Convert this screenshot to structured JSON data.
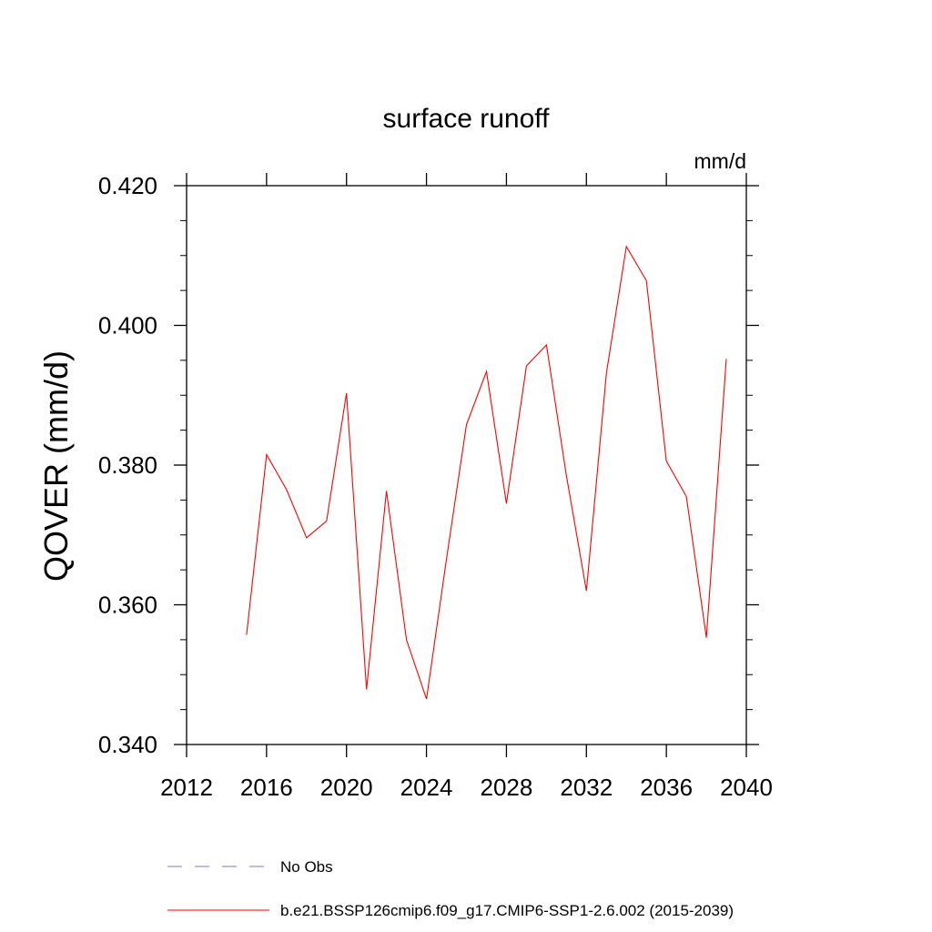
{
  "chart_data": {
    "type": "line",
    "title": "surface runoff",
    "units": "mm/d",
    "ylabel": "QOVER  (mm/d)",
    "xlabel": "",
    "xlim": [
      2012,
      2040
    ],
    "ylim": [
      0.34,
      0.42
    ],
    "xticks": [
      2012,
      2016,
      2020,
      2024,
      2028,
      2032,
      2036,
      2040
    ],
    "yticks": [
      0.34,
      0.36,
      0.38,
      0.4,
      0.42
    ],
    "ytick_labels": [
      "0.340",
      "0.360",
      "0.380",
      "0.400",
      "0.420"
    ],
    "grid": false,
    "series": [
      {
        "name": "b.e21.BSSP126cmip6.f09_g17.CMIP6-SSP1-2.6.002 (2015-2039)",
        "color": "#ff0000",
        "dash": "solid",
        "x": [
          2015,
          2016,
          2017,
          2018,
          2019,
          2020,
          2021,
          2022,
          2023,
          2024,
          2025,
          2026,
          2027,
          2028,
          2029,
          2030,
          2031,
          2032,
          2033,
          2034,
          2035,
          2036,
          2037,
          2038,
          2039
        ],
        "values": [
          0.3557,
          0.3815,
          0.3765,
          0.3696,
          0.372,
          0.3903,
          0.3479,
          0.3763,
          0.355,
          0.3465,
          0.3665,
          0.3858,
          0.3934,
          0.3745,
          0.3942,
          0.3972,
          0.3785,
          0.362,
          0.3932,
          0.4113,
          0.4064,
          0.3806,
          0.3755,
          0.3553,
          0.3952
        ]
      }
    ],
    "legend": [
      {
        "label": "No Obs",
        "color": "#7777cc",
        "dash": "dashed"
      },
      {
        "label": "b.e21.BSSP126cmip6.f09_g17.CMIP6-SSP1-2.6.002 (2015-2039)",
        "color": "#ff0000",
        "dash": "solid"
      }
    ],
    "legend_position": "bottom"
  }
}
